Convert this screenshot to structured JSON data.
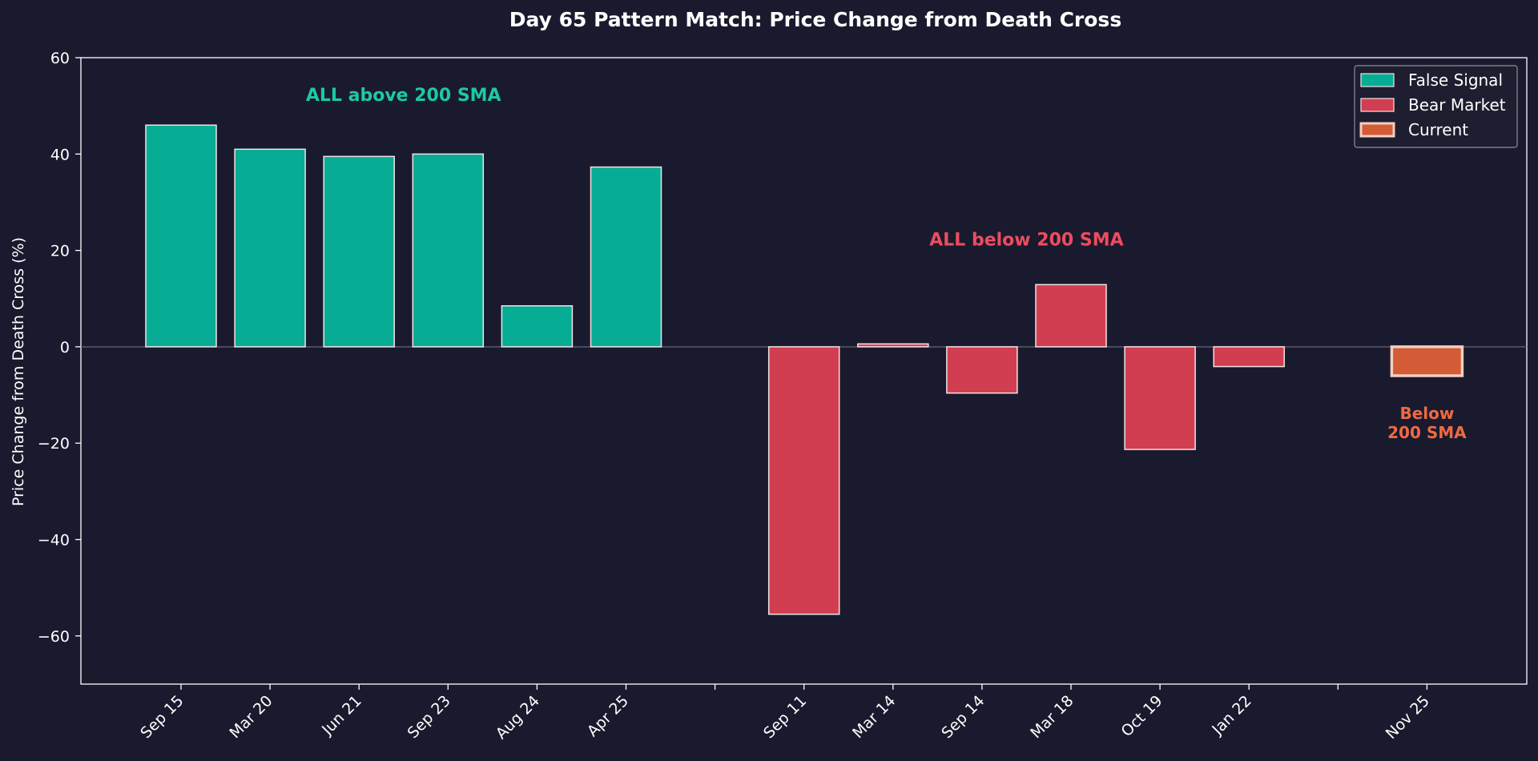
{
  "chart_data": {
    "type": "bar",
    "title": "Day 65 Pattern Match: Price Change from Death Cross",
    "xlabel": "",
    "ylabel": "Price Change from Death Cross (%)",
    "ylim": [
      -70,
      60
    ],
    "yticks": [
      60,
      40,
      20,
      0,
      -20,
      -40,
      -60
    ],
    "ytick_labels": [
      "60",
      "40",
      "20",
      "0",
      "−20",
      "−40",
      "−60"
    ],
    "grid": false,
    "legend_position": "top-right",
    "categories": [
      "Sep 15",
      "Mar 20",
      "Jun 21",
      "Sep 23",
      "Aug 24",
      "Apr 25",
      "",
      "Sep 11",
      "Mar 14",
      "Sep 14",
      "Mar 18",
      "Oct 19",
      "Jan 22",
      "",
      "Nov 25"
    ],
    "series": [
      {
        "name": "False Signal",
        "color": "#06ad94",
        "points": [
          {
            "category": "Sep 15",
            "value": 46
          },
          {
            "category": "Mar 20",
            "value": 41
          },
          {
            "category": "Jun 21",
            "value": 39.5
          },
          {
            "category": "Sep 23",
            "value": 40
          },
          {
            "category": "Aug 24",
            "value": 8.5
          },
          {
            "category": "Apr 25",
            "value": 37.3
          }
        ]
      },
      {
        "name": "Bear Market",
        "color": "#d13e51",
        "points": [
          {
            "category": "Sep 11",
            "value": -55.5
          },
          {
            "category": "Mar 14",
            "value": 0.6
          },
          {
            "category": "Sep 14",
            "value": -9.6
          },
          {
            "category": "Mar 18",
            "value": 12.9
          },
          {
            "category": "Oct 19",
            "value": -21.3
          },
          {
            "category": "Jan 22",
            "value": -4.1
          }
        ]
      },
      {
        "name": "Current",
        "color": "#d35b35",
        "points": [
          {
            "category": "Nov 25",
            "value": -6
          }
        ]
      }
    ],
    "annotations": [
      {
        "text": "ALL above 200 SMA",
        "color": "#1ec8a2",
        "x_category": "Sep 23",
        "x_offset_slots": -0.5,
        "y": 51
      },
      {
        "text": "ALL below 200 SMA",
        "color": "#ee4c5f",
        "x_category": "Sep 14",
        "x_offset_slots": 0.5,
        "y": 21
      },
      {
        "text": "Below\n200 SMA",
        "color": "#ee6a42",
        "x_category": "Nov 25",
        "x_offset_slots": 0,
        "y": -15
      }
    ]
  }
}
